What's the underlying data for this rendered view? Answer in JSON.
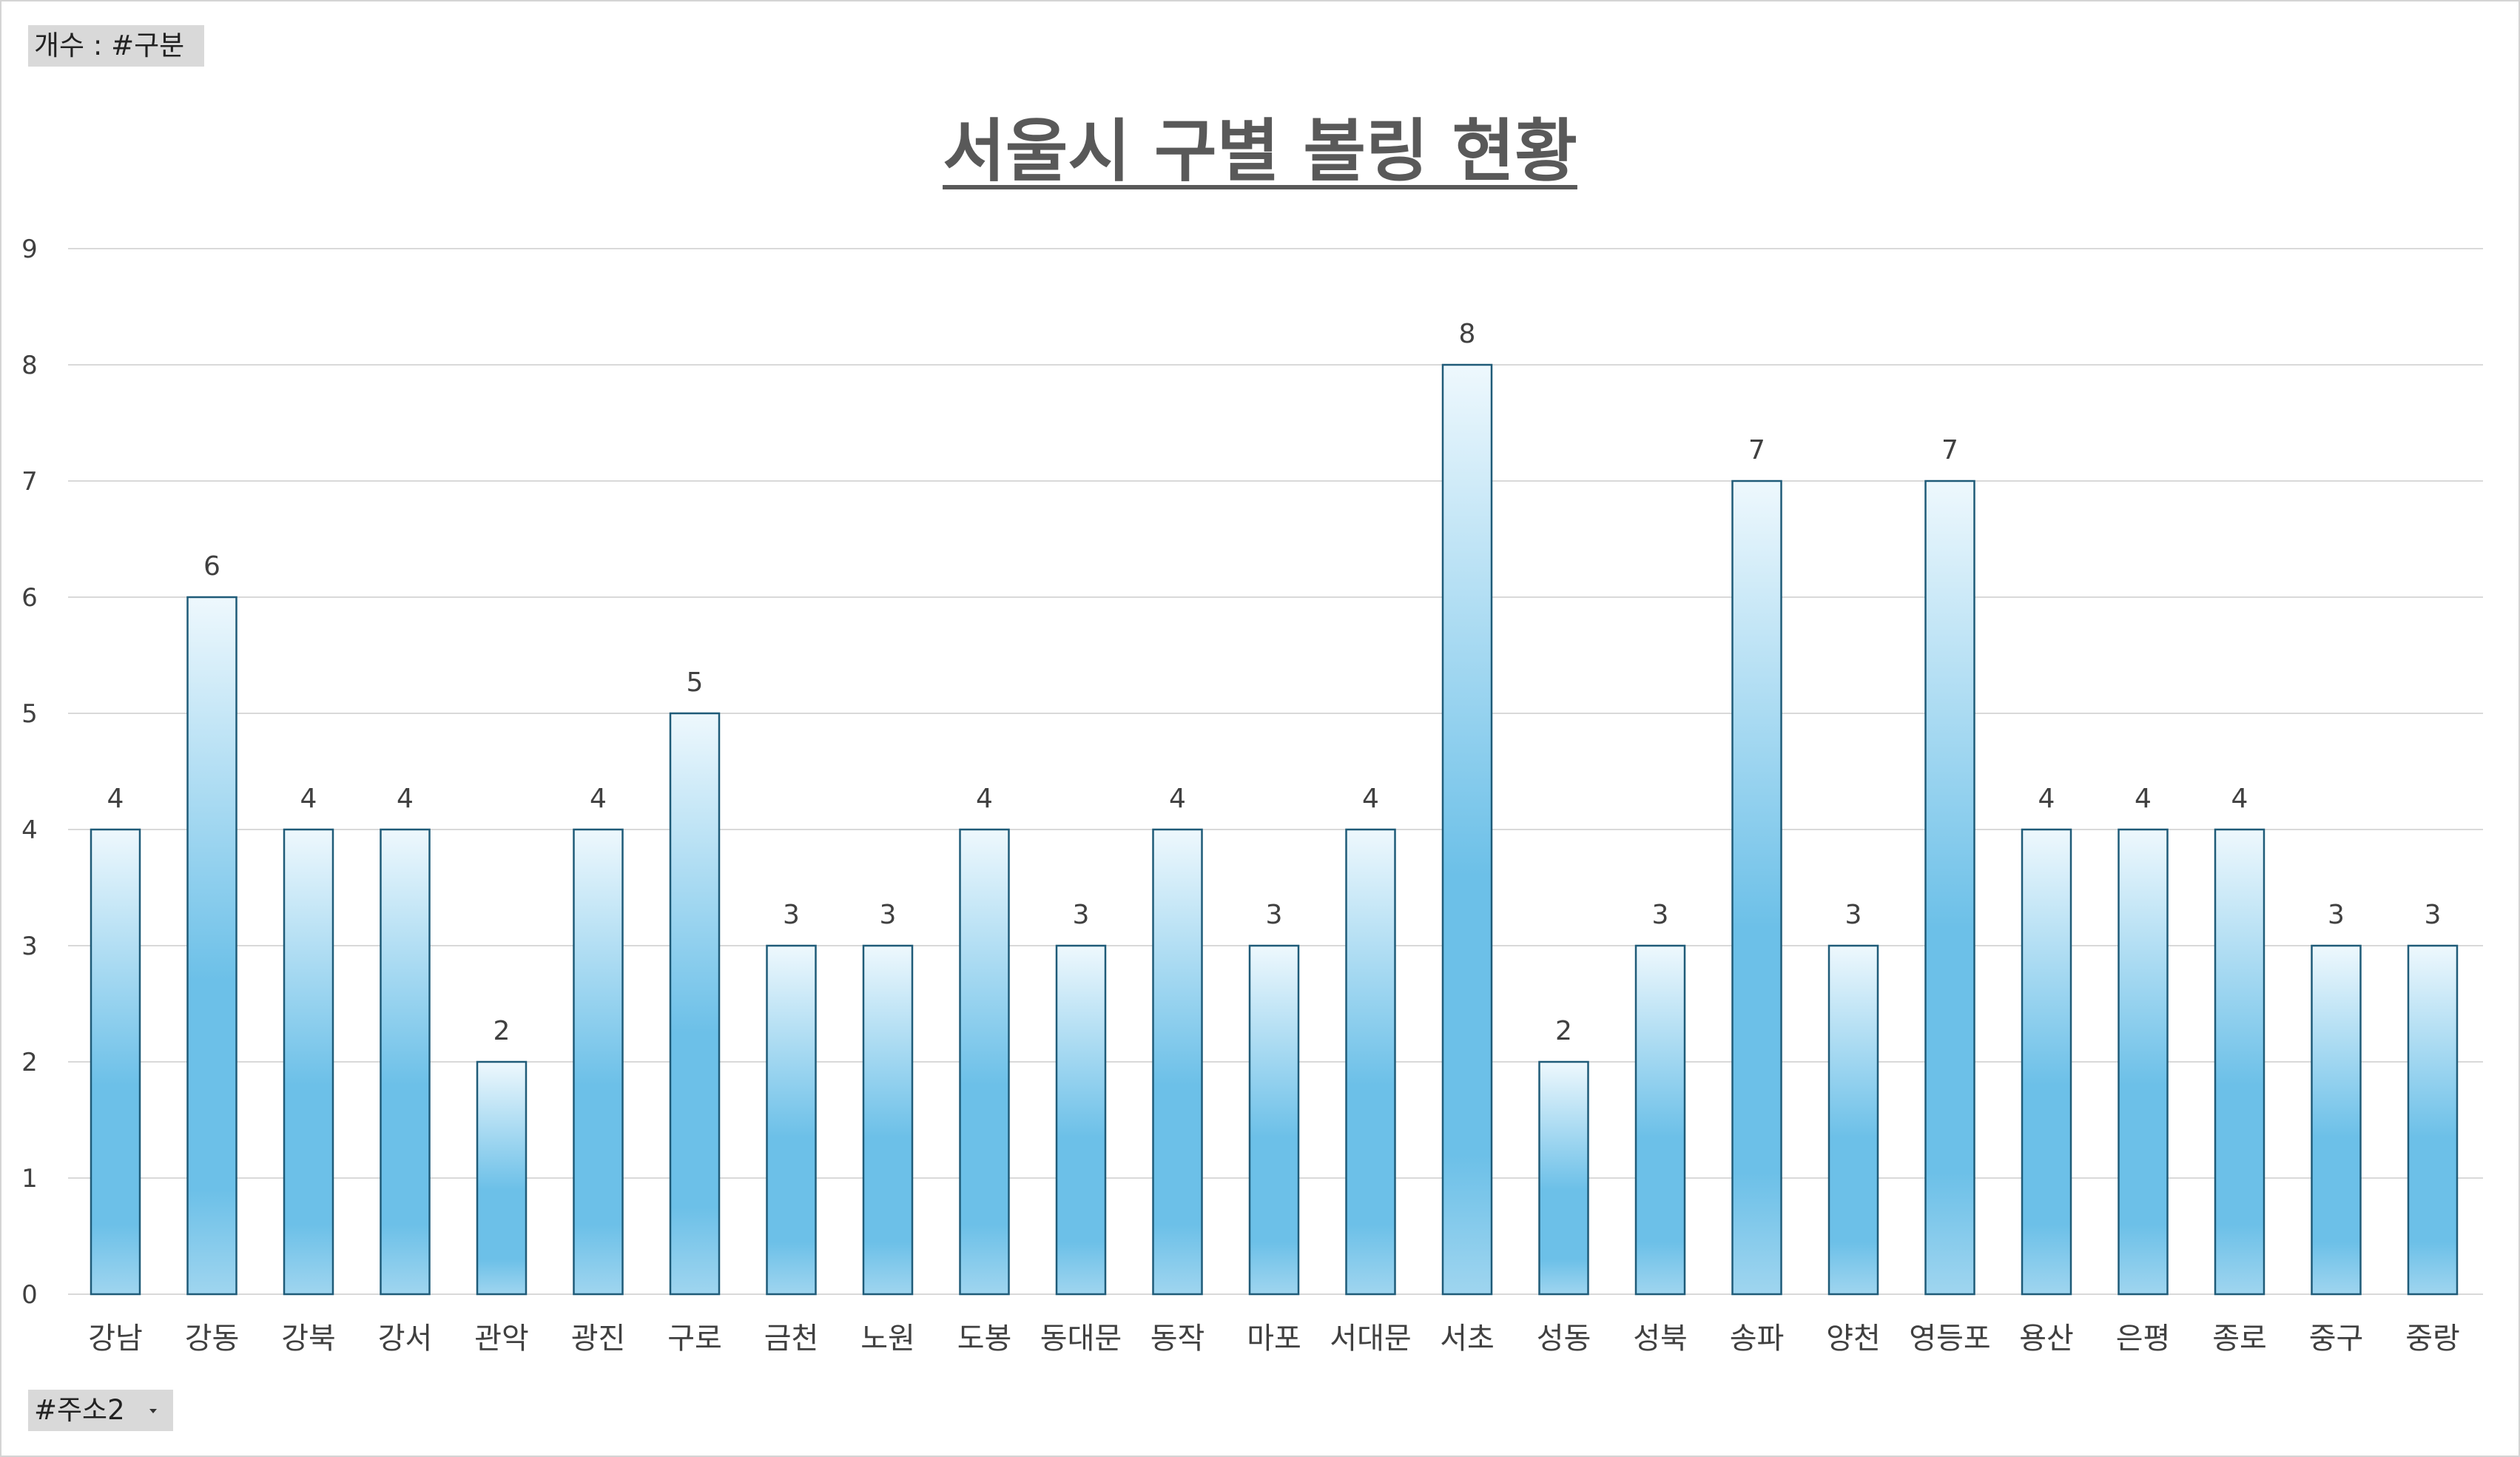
{
  "pivot": {
    "value_field": "개수 : #구분",
    "axis_field": "#주소2"
  },
  "colors": {
    "bar_top": "#eef8fd",
    "bar_bottom": "#6cc0e8",
    "bar_border": "#1f5b78",
    "gridline": "#d9d9d9",
    "text": "#404040",
    "title": "#595959"
  },
  "chart_data": {
    "type": "bar",
    "title": "서울시 구별 볼링 현황",
    "xlabel": "",
    "ylabel": "",
    "ylim": [
      0,
      9
    ],
    "yticks": [
      0,
      1,
      2,
      3,
      4,
      5,
      6,
      7,
      8,
      9
    ],
    "grid": true,
    "legend": "none",
    "data_labels": true,
    "categories": [
      "강남",
      "강동",
      "강북",
      "강서",
      "관악",
      "광진",
      "구로",
      "금천",
      "노원",
      "도봉",
      "동대문",
      "동작",
      "마포",
      "서대문",
      "서초",
      "성동",
      "성북",
      "송파",
      "양천",
      "영등포",
      "용산",
      "은평",
      "종로",
      "중구",
      "중랑"
    ],
    "values": [
      4,
      6,
      4,
      4,
      2,
      4,
      5,
      3,
      3,
      4,
      3,
      4,
      3,
      4,
      8,
      2,
      3,
      7,
      3,
      7,
      4,
      4,
      4,
      3,
      3
    ]
  }
}
